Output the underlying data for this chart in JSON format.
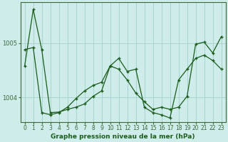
{
  "xlabel": "Graphe pression niveau de la mer (hPa)",
  "background_color": "#ceecea",
  "grid_color": "#a8d4d0",
  "line_color": "#1a5c1a",
  "axis_color": "#3a6a3a",
  "ylim": [
    1003.55,
    1005.75
  ],
  "xlim": [
    -0.5,
    23.5
  ],
  "yticks": [
    1004,
    1005
  ],
  "xticks": [
    0,
    1,
    2,
    3,
    4,
    5,
    6,
    7,
    8,
    9,
    10,
    11,
    12,
    13,
    14,
    15,
    16,
    17,
    18,
    19,
    20,
    21,
    22,
    23
  ],
  "series": [
    [
      1004.58,
      1005.62,
      1004.88,
      1003.72,
      1003.73,
      1003.78,
      1003.82,
      1003.88,
      1004.02,
      1004.12,
      1004.58,
      1004.52,
      1004.32,
      1004.08,
      1003.92,
      1003.78,
      1003.82,
      1003.78,
      1003.82,
      1004.02,
      1004.98,
      1005.02,
      1004.82,
      1005.12
    ],
    [
      1004.88,
      1004.92,
      1003.72,
      1003.68,
      1003.72,
      1003.82,
      1003.98,
      1004.12,
      1004.22,
      1004.28,
      1004.58,
      1004.72,
      1004.48,
      1004.52,
      1003.82,
      1003.72,
      1003.68,
      1003.62,
      1004.32,
      1004.52,
      1004.72,
      1004.78,
      1004.68,
      1004.52
    ]
  ]
}
